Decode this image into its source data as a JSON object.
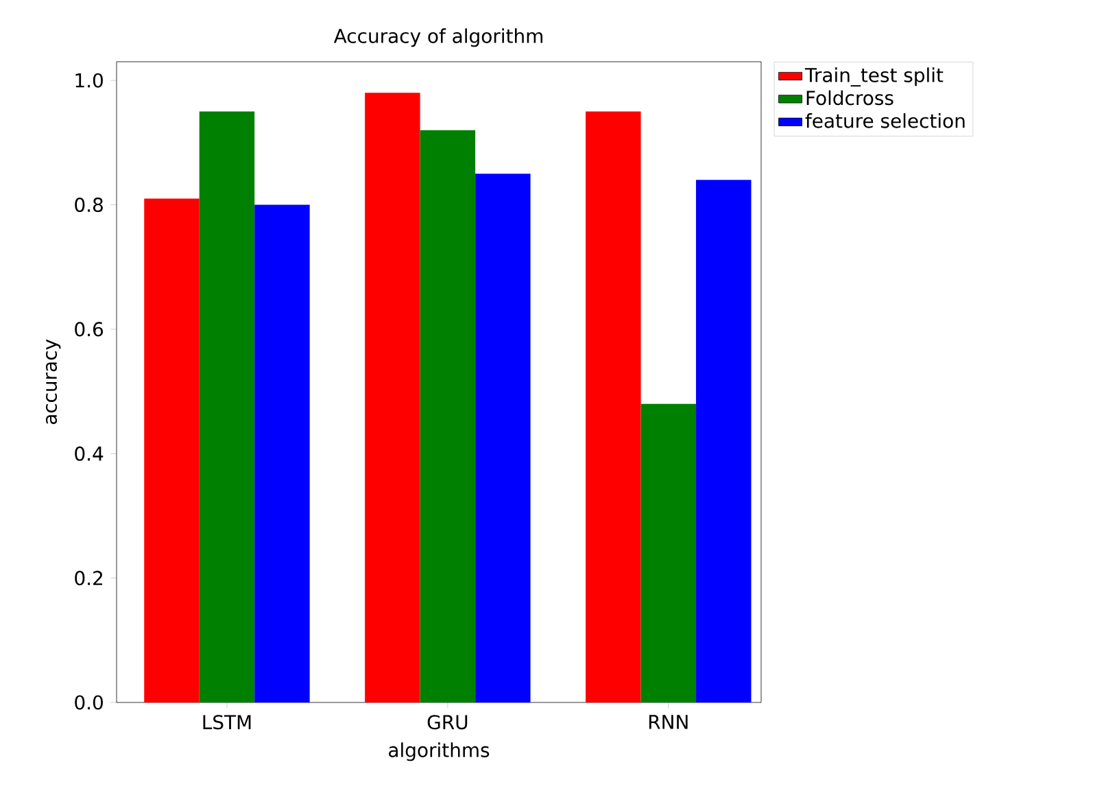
{
  "chart_data": {
    "type": "bar",
    "title": "Accuracy of algorithm",
    "xlabel": "algorithms",
    "ylabel": "accuracy",
    "categories": [
      "LSTM",
      "GRU",
      "RNN"
    ],
    "series": [
      {
        "name": "Train_test split",
        "color": "#ff0000",
        "values": [
          0.81,
          0.98,
          0.95
        ]
      },
      {
        "name": "Foldcross",
        "color": "#008000",
        "values": [
          0.95,
          0.92,
          0.48
        ]
      },
      {
        "name": "feature selection",
        "color": "#0000ff",
        "values": [
          0.8,
          0.85,
          0.84
        ]
      }
    ],
    "ylim": [
      0,
      1.03
    ],
    "yticks": [
      {
        "value": 0,
        "label": "0.0"
      },
      0.2,
      0.4,
      0.6,
      0.8,
      {
        "value": 1,
        "label": "1.0"
      }
    ],
    "legend": "top right",
    "grid": false
  }
}
